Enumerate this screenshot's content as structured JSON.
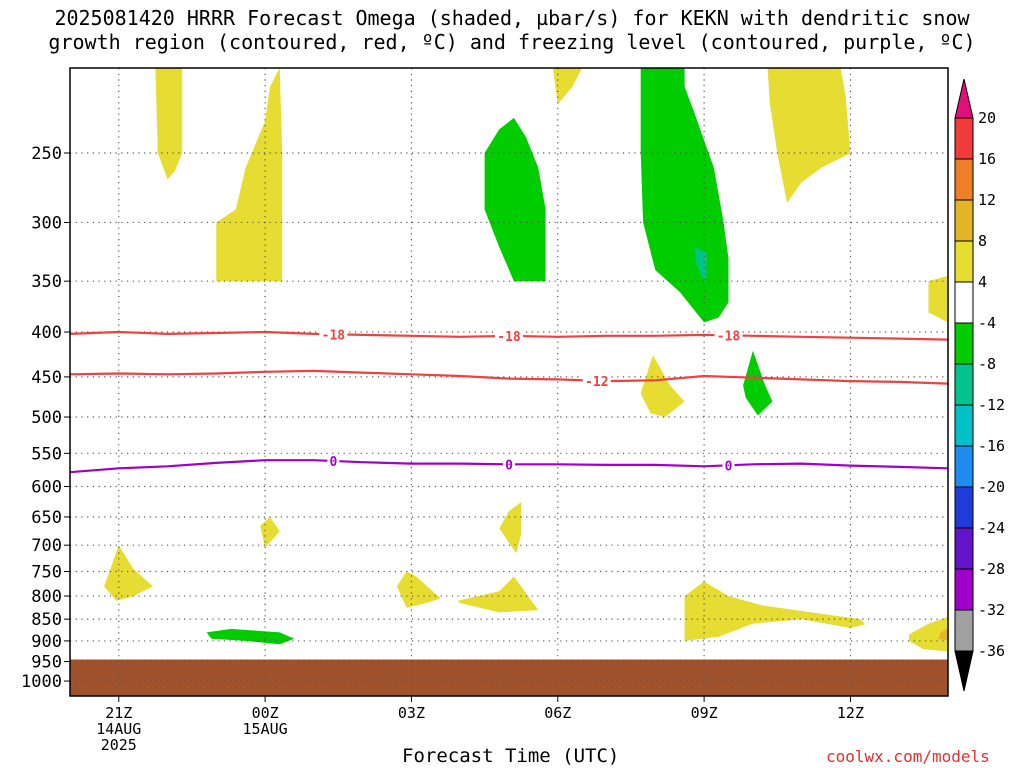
{
  "title": {
    "line1": "2025081420 HRRR Forecast Omega (shaded, µbar/s) for KEKN with dendritic snow",
    "line2": "growth region (contoured, red, ºC) and freezing level (contoured, purple, ºC)"
  },
  "credit": "coolwx.com/models",
  "chart_data": {
    "type": "heatmap",
    "xlabel": "Forecast Time (UTC)",
    "ylabel": "",
    "x_ticks": [
      {
        "hour": 21,
        "label": [
          "21Z",
          "14AUG",
          "2025"
        ]
      },
      {
        "hour": 24,
        "label": [
          "00Z",
          "15AUG"
        ]
      },
      {
        "hour": 27,
        "label": [
          "03Z"
        ]
      },
      {
        "hour": 30,
        "label": [
          "06Z"
        ]
      },
      {
        "hour": 33,
        "label": [
          "09Z"
        ]
      },
      {
        "hour": 36,
        "label": [
          "12Z"
        ]
      }
    ],
    "xlim_hours": [
      20,
      38
    ],
    "y_ticks_hpa": [
      250,
      300,
      350,
      400,
      450,
      500,
      550,
      600,
      650,
      700,
      750,
      800,
      850,
      900,
      950,
      1000
    ],
    "y_scale": "pressure (log)",
    "ylim_hpa": [
      200,
      1040
    ],
    "grid": true,
    "colorbar": {
      "levels": [
        20,
        16,
        12,
        8,
        4,
        -4,
        -8,
        -12,
        -16,
        -20,
        -24,
        -28,
        -32,
        -36
      ],
      "bins": [
        {
          "lo": 20,
          "hi": null,
          "color": "#e0107a"
        },
        {
          "lo": 16,
          "hi": 20,
          "color": "#f03c3c"
        },
        {
          "lo": 12,
          "hi": 16,
          "color": "#f07d28"
        },
        {
          "lo": 8,
          "hi": 12,
          "color": "#e6b428"
        },
        {
          "lo": 4,
          "hi": 8,
          "color": "#e6dc32"
        },
        {
          "lo": -4,
          "hi": 4,
          "color": "#ffffff"
        },
        {
          "lo": -8,
          "hi": -4,
          "color": "#00cc00"
        },
        {
          "lo": -12,
          "hi": -8,
          "color": "#00c48c"
        },
        {
          "lo": -16,
          "hi": -12,
          "color": "#00c0c8"
        },
        {
          "lo": -20,
          "hi": -16,
          "color": "#1e8cf0"
        },
        {
          "lo": -24,
          "hi": -20,
          "color": "#1e3cdc"
        },
        {
          "lo": -28,
          "hi": -24,
          "color": "#6414c8"
        },
        {
          "lo": -32,
          "hi": -28,
          "color": "#a000c8"
        },
        {
          "lo": -36,
          "hi": -32,
          "color": "#a0a0a0"
        },
        {
          "lo": null,
          "hi": -36,
          "color": "#000000"
        }
      ]
    },
    "contours": [
      {
        "variable": "temperature",
        "level": -18,
        "color": "#f04040",
        "labels": [
          "-18",
          "-18",
          "-18"
        ],
        "points": [
          [
            20,
            402
          ],
          [
            21,
            400
          ],
          [
            22,
            402
          ],
          [
            23,
            401
          ],
          [
            24,
            400
          ],
          [
            25,
            402
          ],
          [
            26,
            403
          ],
          [
            27,
            404
          ],
          [
            28,
            405
          ],
          [
            29,
            404
          ],
          [
            30,
            405
          ],
          [
            31,
            404
          ],
          [
            32,
            404
          ],
          [
            33,
            403
          ],
          [
            34,
            404
          ],
          [
            35,
            405
          ],
          [
            36,
            406
          ],
          [
            37,
            407
          ],
          [
            38,
            408
          ]
        ]
      },
      {
        "variable": "temperature",
        "level": -12,
        "color": "#f04040",
        "labels": [
          "-12"
        ],
        "points": [
          [
            20,
            447
          ],
          [
            21,
            446
          ],
          [
            22,
            447
          ],
          [
            23,
            446
          ],
          [
            24,
            444
          ],
          [
            25,
            443
          ],
          [
            26,
            445
          ],
          [
            27,
            447
          ],
          [
            28,
            449
          ],
          [
            29,
            452
          ],
          [
            30,
            453
          ],
          [
            31,
            455
          ],
          [
            32,
            454
          ],
          [
            33,
            449
          ],
          [
            34,
            451
          ],
          [
            35,
            453
          ],
          [
            36,
            455
          ],
          [
            37,
            456
          ],
          [
            38,
            458
          ]
        ]
      },
      {
        "variable": "freezing level",
        "level": 0,
        "color": "#a000c8",
        "labels": [
          "0",
          "0",
          "0"
        ],
        "points": [
          [
            20,
            578
          ],
          [
            21,
            572
          ],
          [
            22,
            569
          ],
          [
            23,
            564
          ],
          [
            24,
            560
          ],
          [
            25,
            560
          ],
          [
            26,
            563
          ],
          [
            27,
            565
          ],
          [
            28,
            565
          ],
          [
            29,
            566
          ],
          [
            30,
            566
          ],
          [
            31,
            567
          ],
          [
            32,
            567
          ],
          [
            33,
            569
          ],
          [
            34,
            566
          ],
          [
            35,
            565
          ],
          [
            36,
            568
          ],
          [
            37,
            570
          ],
          [
            38,
            572
          ]
        ]
      }
    ],
    "omega_regions": [
      {
        "bin": "4 to 8",
        "color": "#e6dc32",
        "points": [
          [
            21.75,
            200
          ],
          [
            22.3,
            200
          ],
          [
            22.3,
            250
          ],
          [
            22.15,
            262
          ],
          [
            22.0,
            268
          ],
          [
            21.8,
            250
          ]
        ]
      },
      {
        "bin": "4 to 8",
        "color": "#e6dc32",
        "points": [
          [
            23.0,
            300
          ],
          [
            23.4,
            290
          ],
          [
            23.6,
            260
          ],
          [
            24.0,
            230
          ],
          [
            24.1,
            210
          ],
          [
            24.3,
            200
          ],
          [
            24.35,
            250
          ],
          [
            24.35,
            350
          ],
          [
            23.0,
            350
          ]
        ]
      },
      {
        "bin": "4 to 8",
        "color": "#e6dc32",
        "points": [
          [
            29.9,
            200
          ],
          [
            30.5,
            200
          ],
          [
            30.3,
            210
          ],
          [
            30.0,
            220
          ]
        ]
      },
      {
        "bin": "4 to 8",
        "color": "#e6dc32",
        "points": [
          [
            34.3,
            200
          ],
          [
            35.8,
            200
          ],
          [
            35.9,
            215
          ],
          [
            36.0,
            250
          ],
          [
            35.4,
            260
          ],
          [
            35.0,
            270
          ],
          [
            34.7,
            285
          ],
          [
            34.5,
            250
          ],
          [
            34.35,
            220
          ]
        ]
      },
      {
        "bin": "4 to 8",
        "color": "#e6dc32",
        "points": [
          [
            38,
            345
          ],
          [
            37.6,
            350
          ],
          [
            37.6,
            380
          ],
          [
            38,
            390
          ]
        ]
      },
      {
        "bin": "-8 to -4",
        "color": "#00cc00",
        "points": [
          [
            28.5,
            250
          ],
          [
            28.8,
            235
          ],
          [
            29.1,
            228
          ],
          [
            29.35,
            240
          ],
          [
            29.6,
            260
          ],
          [
            29.75,
            290
          ],
          [
            29.75,
            350
          ],
          [
            29.1,
            350
          ],
          [
            28.8,
            320
          ],
          [
            28.5,
            290
          ]
        ]
      },
      {
        "bin": "-8 to -4",
        "color": "#00cc00",
        "points": [
          [
            31.7,
            200
          ],
          [
            32.6,
            200
          ],
          [
            32.6,
            210
          ],
          [
            32.8,
            225
          ],
          [
            33.2,
            260
          ],
          [
            33.4,
            300
          ],
          [
            33.5,
            330
          ],
          [
            33.5,
            370
          ],
          [
            33.3,
            385
          ],
          [
            33.0,
            390
          ],
          [
            32.5,
            360
          ],
          [
            32.0,
            340
          ],
          [
            31.75,
            300
          ],
          [
            31.7,
            250
          ]
        ]
      },
      {
        "bin": "-12 to -8",
        "color": "#00c48c",
        "points": [
          [
            32.8,
            320
          ],
          [
            33.05,
            325
          ],
          [
            33.05,
            345
          ],
          [
            33.0,
            350
          ],
          [
            32.85,
            335
          ]
        ]
      },
      {
        "bin": "4 to 8",
        "color": "#e6dc32",
        "points": [
          [
            31.7,
            470
          ],
          [
            31.95,
            425
          ],
          [
            32.3,
            460
          ],
          [
            32.6,
            480
          ],
          [
            32.2,
            500
          ],
          [
            31.9,
            495
          ]
        ]
      },
      {
        "bin": "-8 to -4",
        "color": "#00cc00",
        "points": [
          [
            33.8,
            460
          ],
          [
            34.0,
            420
          ],
          [
            34.25,
            460
          ],
          [
            34.4,
            480
          ],
          [
            34.1,
            498
          ],
          [
            33.85,
            475
          ]
        ]
      },
      {
        "bin": "4 to 8",
        "color": "#e6dc32",
        "points": [
          [
            23.9,
            665
          ],
          [
            24.1,
            650
          ],
          [
            24.3,
            675
          ],
          [
            24.0,
            705
          ]
        ]
      },
      {
        "bin": "4 to 8",
        "color": "#e6dc32",
        "points": [
          [
            28.8,
            670
          ],
          [
            29.0,
            640
          ],
          [
            29.25,
            625
          ],
          [
            29.25,
            680
          ],
          [
            29.15,
            715
          ]
        ]
      },
      {
        "bin": "4 to 8",
        "color": "#e6dc32",
        "points": [
          [
            20.7,
            780
          ],
          [
            21.0,
            700
          ],
          [
            21.3,
            745
          ],
          [
            21.7,
            780
          ],
          [
            21.3,
            800
          ],
          [
            20.95,
            810
          ]
        ]
      },
      {
        "bin": "4 to 8",
        "color": "#e6dc32",
        "points": [
          [
            26.7,
            780
          ],
          [
            26.9,
            750
          ],
          [
            27.1,
            760
          ],
          [
            27.6,
            805
          ],
          [
            27.3,
            815
          ],
          [
            26.9,
            825
          ]
        ]
      },
      {
        "bin": "4 to 8",
        "color": "#e6dc32",
        "points": [
          [
            27.95,
            810
          ],
          [
            28.8,
            790
          ],
          [
            29.1,
            760
          ],
          [
            29.6,
            830
          ],
          [
            28.8,
            835
          ],
          [
            28.0,
            815
          ]
        ]
      },
      {
        "bin": "4 to 8",
        "color": "#e6dc32",
        "points": [
          [
            32.6,
            800
          ],
          [
            33.0,
            770
          ],
          [
            33.5,
            800
          ],
          [
            34.2,
            820
          ],
          [
            35.2,
            835
          ],
          [
            36.2,
            850
          ],
          [
            36.3,
            862
          ],
          [
            36.0,
            870
          ],
          [
            35.0,
            850
          ],
          [
            34.0,
            860
          ],
          [
            33.3,
            890
          ],
          [
            32.6,
            900
          ]
        ]
      },
      {
        "bin": "4 to 8",
        "color": "#e6dc32",
        "points": [
          [
            37.2,
            885
          ],
          [
            37.6,
            860
          ],
          [
            38,
            845
          ],
          [
            38,
            925
          ],
          [
            37.5,
            920
          ],
          [
            37.2,
            900
          ]
        ]
      },
      {
        "bin": "8 to 12",
        "color": "#e6b428",
        "points": [
          [
            37.85,
            880
          ],
          [
            38,
            870
          ],
          [
            38,
            900
          ],
          [
            37.8,
            895
          ]
        ]
      },
      {
        "bin": "-8 to -4",
        "color": "#00cc00",
        "points": [
          [
            22.8,
            880
          ],
          [
            23.3,
            872
          ],
          [
            24.3,
            880
          ],
          [
            24.6,
            895
          ],
          [
            24.3,
            908
          ],
          [
            23.6,
            900
          ],
          [
            22.9,
            895
          ]
        ]
      }
    ],
    "terrain": {
      "color": "#a0522d",
      "surface_hpa": 945
    }
  }
}
